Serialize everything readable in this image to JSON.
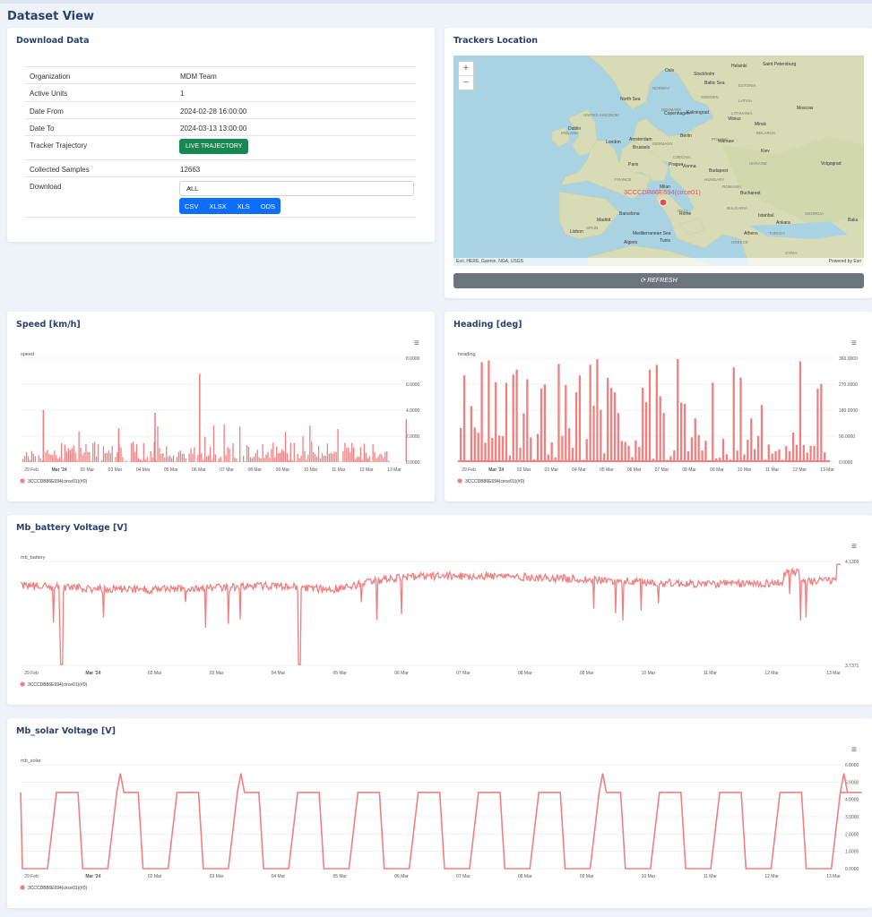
{
  "page": {
    "title": "Dataset View"
  },
  "download": {
    "title": "Download Data",
    "rows": [
      {
        "label": "Organization",
        "value": "MDM Team"
      },
      {
        "label": "Active Units",
        "value": "1"
      },
      {
        "label": "Date From",
        "value": "2024-02-28 16:00:00"
      },
      {
        "label": "Date To",
        "value": "2024-03-13 13:00:00"
      },
      {
        "label": "Tracker Trajectory",
        "value": ""
      },
      {
        "label": "Collected Samples",
        "value": "12663"
      },
      {
        "label": "Download",
        "value": ""
      }
    ],
    "live_button": "LIVE TRAJECTORY",
    "select_value": "ALL",
    "formats": [
      "CSV",
      "XLSX",
      "XLS",
      "ODS"
    ]
  },
  "map": {
    "title": "Trackers Location",
    "marker_label": "3CCCDB86E694(circe01)",
    "attribution_left": "Esri, HERE, Garmin, NGA, USGS",
    "attribution_right": "Powered by Esri",
    "refresh_label": "REFRESH",
    "zoom_in": "+",
    "zoom_out": "−",
    "place_labels": [
      {
        "text": "Oslo"
      },
      {
        "text": "Stockholm"
      },
      {
        "text": "Helsinki"
      },
      {
        "text": "Saint Petersburg"
      },
      {
        "text": "NORWAY"
      },
      {
        "text": "SWEDEN"
      },
      {
        "text": "ESTONIA"
      },
      {
        "text": "LATVIA"
      },
      {
        "text": "DENMARK"
      },
      {
        "text": "Copenhagen"
      },
      {
        "text": "LITHUANIA"
      },
      {
        "text": "Vilnius"
      },
      {
        "text": "Minsk"
      },
      {
        "text": "BELARUS"
      },
      {
        "text": "Moscow"
      },
      {
        "text": "North Sea"
      },
      {
        "text": "Baltic Sea"
      },
      {
        "text": "UNITED KINGDOM"
      },
      {
        "text": "IRELAND"
      },
      {
        "text": "Dublin"
      },
      {
        "text": "London"
      },
      {
        "text": "Amsterdam"
      },
      {
        "text": "Brussels"
      },
      {
        "text": "GERMANY"
      },
      {
        "text": "Berlin"
      },
      {
        "text": "POLAND"
      },
      {
        "text": "Warsaw"
      },
      {
        "text": "Kiev"
      },
      {
        "text": "UKRAINE"
      },
      {
        "text": "Paris"
      },
      {
        "text": "CZECHIA"
      },
      {
        "text": "Prague"
      },
      {
        "text": "Vienna"
      },
      {
        "text": "Budapest"
      },
      {
        "text": "HUNGARY"
      },
      {
        "text": "FRANCE"
      },
      {
        "text": "Milan"
      },
      {
        "text": "ROMANIA"
      },
      {
        "text": "Bucharest"
      },
      {
        "text": "Volgograd"
      },
      {
        "text": "ITALY"
      },
      {
        "text": "Rome"
      },
      {
        "text": "BULGARIA"
      },
      {
        "text": "Istanbul"
      },
      {
        "text": "Ankara"
      },
      {
        "text": "TURKEY"
      },
      {
        "text": "Athens"
      },
      {
        "text": "GREECE"
      },
      {
        "text": "GEORGIA"
      },
      {
        "text": "Baku"
      },
      {
        "text": "Madrid"
      },
      {
        "text": "SPAIN"
      },
      {
        "text": "Lisbon"
      },
      {
        "text": "Barcelona"
      },
      {
        "text": "Algiers"
      },
      {
        "text": "Tunis"
      },
      {
        "text": "Mediterranean Sea"
      },
      {
        "text": "SYRIA"
      },
      {
        "text": "Kaliningrad"
      }
    ]
  },
  "chart_data": [
    {
      "type": "bar",
      "title": "Speed [km/h]",
      "ylabel": "speed",
      "ylim": [
        0,
        8
      ],
      "yticks": [
        "0.0000",
        "2.0000",
        "4.0000",
        "6.0000",
        "8.0000"
      ],
      "xticks": [
        "29 Feb",
        "Mar '24",
        "02 Mar",
        "03 Mar",
        "04 Mar",
        "05 Mar",
        "06 Mar",
        "07 Mar",
        "08 Mar",
        "09 Mar",
        "10 Mar",
        "11 Mar",
        "12 Mar",
        "13 Mar"
      ],
      "series": [
        {
          "name": "3CCCDB86E694(circe01)(#0)",
          "color": "#f08080"
        }
      ],
      "peaks": [
        {
          "x": 0.5,
          "y": 4.0
        },
        {
          "x": 3.2,
          "y": 2.6
        },
        {
          "x": 4.5,
          "y": 3.8
        },
        {
          "x": 6.1,
          "y": 6.8
        },
        {
          "x": 13.5,
          "y": 3.3
        }
      ],
      "grid": true,
      "legend": "bottom-left"
    },
    {
      "type": "bar",
      "title": "Heading [deg]",
      "ylabel": "heading",
      "ylim": [
        0,
        360
      ],
      "yticks": [
        "0.0000",
        "90.0000",
        "180.0000",
        "270.0000",
        "360.0000"
      ],
      "xticks": [
        "29 Feb",
        "Mar '24",
        "02 Mar",
        "03 Mar",
        "04 Mar",
        "05 Mar",
        "06 Mar",
        "07 Mar",
        "08 Mar",
        "09 Mar",
        "10 Mar",
        "11 Mar",
        "12 Mar",
        "13 Mar"
      ],
      "series": [
        {
          "name": "3CCCDB86E694(circe01)(#0)",
          "color": "#f08080"
        }
      ],
      "grid": true,
      "legend": "bottom-left"
    },
    {
      "type": "line",
      "title": "Mb_battery Voltage [V]",
      "ylabel": "mb_battery",
      "ylim": [
        3.7371,
        4.1309
      ],
      "yticks": [
        "3.7371",
        "4.1309"
      ],
      "xticks": [
        "29 Feb",
        "Mar '24",
        "02 Mar",
        "03 Mar",
        "04 Mar",
        "05 Mar",
        "06 Mar",
        "07 Mar",
        "08 Mar",
        "09 Mar",
        "10 Mar",
        "11 Mar",
        "12 Mar",
        "13 Mar"
      ],
      "series": [
        {
          "name": "3CCCDB86E694(circe01)(#0)",
          "color": "#f08080"
        }
      ],
      "grid": true,
      "legend": "bottom-left"
    },
    {
      "type": "line",
      "title": "Mb_solar Voltage [V]",
      "ylabel": "mb_solar",
      "ylim": [
        0,
        6
      ],
      "yticks": [
        "0.0000",
        "1.0000",
        "2.0000",
        "3.0000",
        "4.0000",
        "5.0000",
        "6.0000"
      ],
      "xticks": [
        "29 Feb",
        "Mar '24",
        "02 Mar",
        "03 Mar",
        "04 Mar",
        "05 Mar",
        "06 Mar",
        "07 Mar",
        "08 Mar",
        "09 Mar",
        "10 Mar",
        "11 Mar",
        "12 Mar",
        "13 Mar"
      ],
      "series": [
        {
          "name": "3CCCDB86E694(circe01)(#0)",
          "color": "#f08080"
        }
      ],
      "day_level": 4.4,
      "night_level": 0.0,
      "grid": true,
      "legend": "bottom-left"
    }
  ],
  "icons": {
    "menu": "hamburger-menu-icon",
    "refresh": "refresh-icon",
    "chevron": "chevron-down-icon"
  }
}
